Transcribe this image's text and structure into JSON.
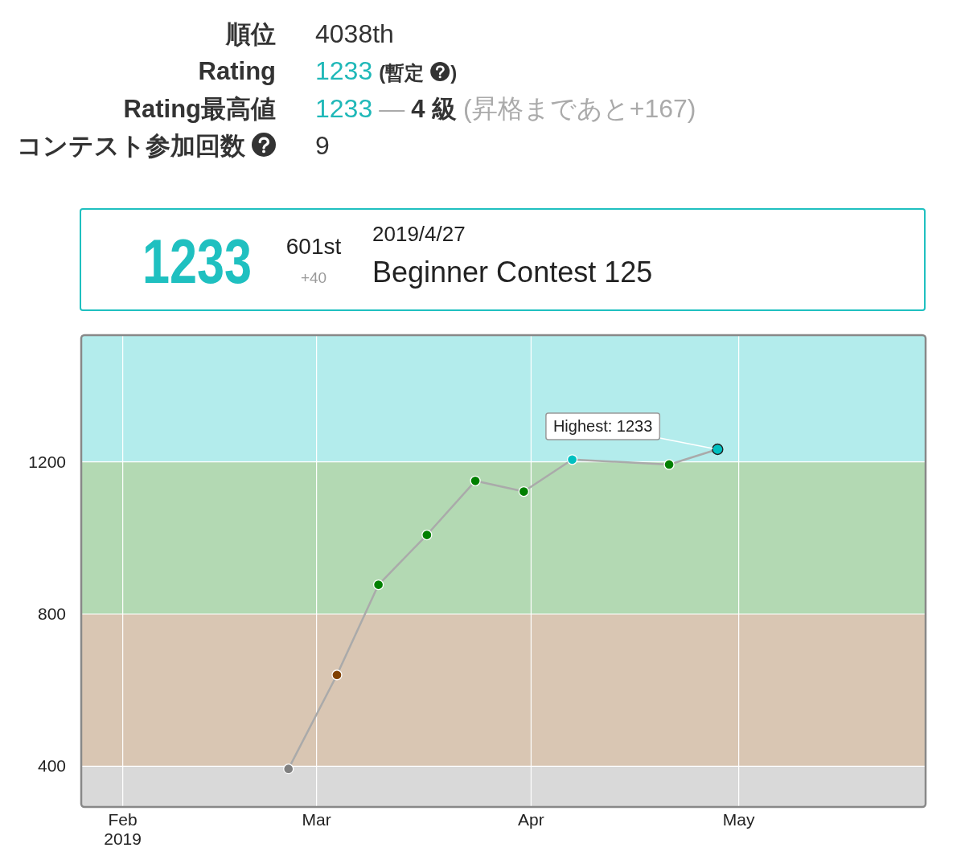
{
  "chart_data": [
    {
      "type": "other",
      "annotations": [
        "順位",
        "4038th",
        "Rating",
        "1233",
        "(暫定",
        ")",
        "Rating最高値",
        "1233",
        "—",
        "4 級",
        "(昇格まであと+167)",
        "コンテスト参加回数",
        "9"
      ]
    },
    {
      "type": "line",
      "annotations": [
        "1233",
        "601st",
        "+40",
        "2019/4/27",
        "Beginner Contest 125",
        {
          "text": "Highest: 1233",
          "x": "2019-04-27T22:40",
          "y": 1233
        }
      ],
      "x": [
        "2019-02-24T22:40",
        "2019-03-03T22:40",
        "2019-03-09T22:40",
        "2019-03-16T22:40",
        "2019-03-23T22:40",
        "2019-03-30T22:40",
        "2019-04-06T22:40",
        "2019-04-20T22:40",
        "2019-04-27T22:40"
      ],
      "series": [
        {
          "color": "#aaaaaa",
          "colors": [
            "#808080",
            "#804000",
            "#008000",
            "#008000",
            "#008000",
            "#008000",
            "#00c0c0",
            "#008000",
            "#00c0c0"
          ],
          "values": [
            393,
            640,
            877,
            1008,
            1150,
            1122,
            1206,
            1193,
            1233
          ]
        }
      ],
      "xlim": [
        "2019-01-26",
        "2019-05-28"
      ],
      "ylim": [
        293,
        1533
      ],
      "xticks": [
        {
          "value": "2019-02-01",
          "label": "Feb\n2019"
        },
        {
          "value": "2019-03-01",
          "label": "Mar"
        },
        {
          "value": "2019-04-01",
          "label": "Apr"
        },
        {
          "value": "2019-05-01",
          "label": "May"
        }
      ],
      "yticks": [
        400,
        800,
        1200
      ],
      "bands": [
        {
          "axis": "y",
          "from": 293,
          "to": 400,
          "color": "#d9d9d9"
        },
        {
          "axis": "y",
          "from": 400,
          "to": 800,
          "color": "#d9c6b3"
        },
        {
          "axis": "y",
          "from": 800,
          "to": 1200,
          "color": "#b3d9b3"
        },
        {
          "axis": "y",
          "from": 1200,
          "to": 1533,
          "color": "#b3ecec"
        }
      ],
      "grid": true,
      "marker": "circle"
    }
  ]
}
